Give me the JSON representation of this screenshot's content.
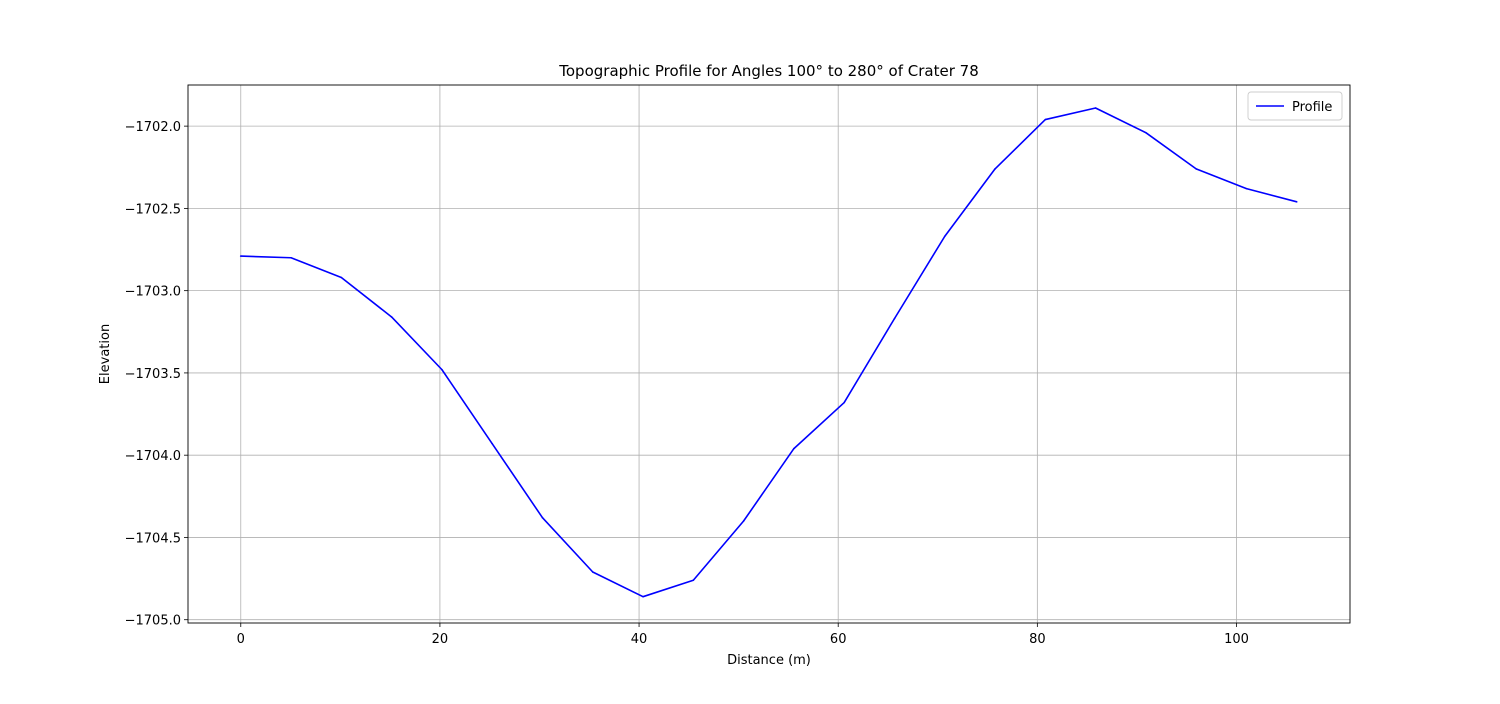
{
  "chart_data": {
    "type": "line",
    "title": "Topographic Profile for Angles 100° to 280° of Crater 78",
    "xlabel": "Distance (m)",
    "ylabel": "Elevation",
    "xlim": [
      -5.3,
      111.4
    ],
    "ylim": [
      -1705.02,
      -1701.75
    ],
    "xticks": [
      0,
      20,
      40,
      60,
      80,
      100
    ],
    "xtick_labels": [
      "0",
      "20",
      "40",
      "60",
      "80",
      "100"
    ],
    "yticks": [
      -1702.0,
      -1702.5,
      -1703.0,
      -1703.5,
      -1704.0,
      -1704.5,
      -1705.0
    ],
    "ytick_labels": [
      "−1702.0",
      "−1702.5",
      "−1703.0",
      "−1703.5",
      "−1704.0",
      "−1704.5",
      "−1705.0"
    ],
    "grid": true,
    "legend_position": "top-right",
    "series": [
      {
        "name": "Profile",
        "color": "#0000ff",
        "x": [
          0,
          5.05,
          10.1,
          15.15,
          20.2,
          25.25,
          30.3,
          35.35,
          40.4,
          45.45,
          50.5,
          55.55,
          60.6,
          65.65,
          70.7,
          75.75,
          80.8,
          85.85,
          90.9,
          95.95,
          101.0,
          106.05
        ],
        "y": [
          -1702.79,
          -1702.8,
          -1702.92,
          -1703.16,
          -1703.48,
          -1703.93,
          -1704.38,
          -1704.71,
          -1704.86,
          -1704.76,
          -1704.4,
          -1703.96,
          -1703.68,
          -1703.17,
          -1702.67,
          -1702.26,
          -1701.96,
          -1701.89,
          -1702.04,
          -1702.26,
          -1702.38,
          -1702.46
        ]
      }
    ]
  }
}
